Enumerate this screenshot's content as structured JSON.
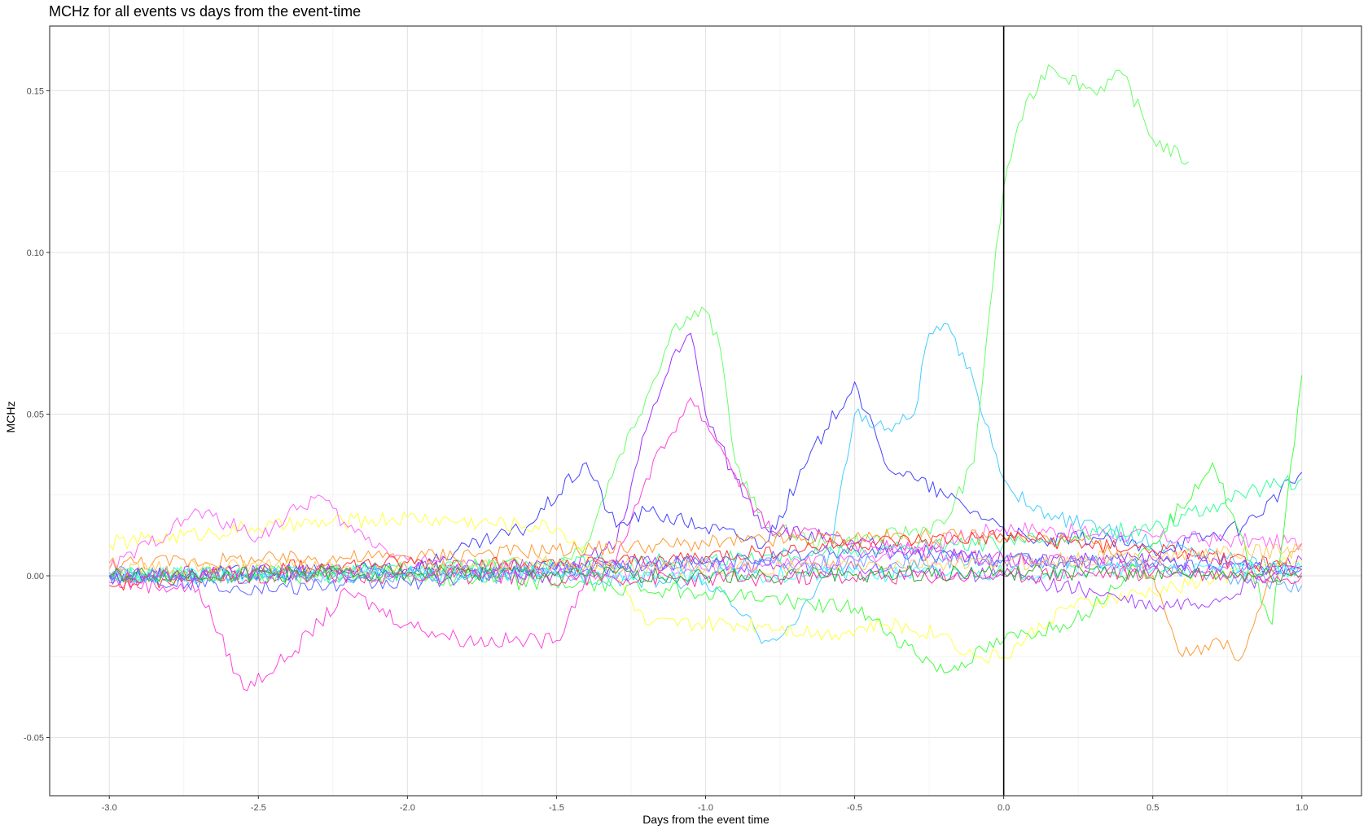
{
  "chart_data": {
    "type": "line",
    "title": "MCHz for all events vs days from the event-time",
    "xlabel": "Days from the event time",
    "ylabel": "MCHz",
    "xlim": [
      -3.2,
      1.2
    ],
    "ylim": [
      -0.068,
      0.17
    ],
    "x_ticks": [
      -3.0,
      -2.5,
      -2.0,
      -1.5,
      -1.0,
      -0.5,
      0.0,
      0.5,
      1.0
    ],
    "x_tick_labels": [
      "-3.0",
      "-2.5",
      "-2.0",
      "-1.5",
      "-1.0",
      "-0.5",
      "0.0",
      "0.5",
      "1.0"
    ],
    "y_ticks": [
      -0.05,
      0.0,
      0.05,
      0.1,
      0.15
    ],
    "y_tick_labels": [
      "-0.05",
      "0.00",
      "0.05",
      "0.10",
      "0.15"
    ],
    "grid": true,
    "legend": "none",
    "vline_x": 0.0,
    "series": [
      {
        "color": "#66ff66",
        "x": [
          -3.0,
          -2.0,
          -1.5,
          -1.4,
          -1.3,
          -1.2,
          -1.1,
          -1.0,
          -0.95,
          -0.9,
          -0.8,
          -0.6,
          -0.4,
          -0.2,
          -0.1,
          -0.05,
          0.0,
          0.05,
          0.15,
          0.3,
          0.4,
          0.5,
          0.62
        ],
        "y": [
          0.0,
          0.002,
          0.004,
          0.01,
          0.035,
          0.055,
          0.078,
          0.082,
          0.07,
          0.035,
          0.015,
          0.01,
          0.012,
          0.016,
          0.035,
          0.08,
          0.12,
          0.14,
          0.158,
          0.15,
          0.155,
          0.135,
          0.128
        ]
      },
      {
        "color": "#9933ff",
        "x": [
          -3.0,
          -2.0,
          -1.5,
          -1.3,
          -1.2,
          -1.1,
          -1.05,
          -1.0,
          -0.9,
          -0.8,
          -0.5,
          0.0,
          0.5,
          1.0
        ],
        "y": [
          0.0,
          0.002,
          0.0,
          0.01,
          0.045,
          0.07,
          0.075,
          0.05,
          0.03,
          0.015,
          0.01,
          0.005,
          0.005,
          0.003
        ]
      },
      {
        "color": "#ff44dd",
        "x": [
          -3.0,
          -2.7,
          -2.55,
          -2.4,
          -2.2,
          -2.0,
          -1.8,
          -1.6,
          -1.5,
          -1.4,
          -1.3,
          -1.2,
          -1.05,
          -0.95,
          -0.8,
          -0.5,
          0.0,
          0.5,
          1.0
        ],
        "y": [
          -0.002,
          -0.004,
          -0.035,
          -0.025,
          -0.005,
          -0.015,
          -0.02,
          -0.02,
          -0.02,
          0.0,
          0.005,
          0.03,
          0.055,
          0.04,
          0.015,
          0.01,
          0.005,
          0.003,
          0.001
        ]
      },
      {
        "color": "#4444ff",
        "x": [
          -3.0,
          -2.0,
          -1.6,
          -1.4,
          -1.3,
          -1.2,
          -1.0,
          -0.8,
          -0.6,
          -0.5,
          -0.4,
          -0.3,
          -0.2,
          -0.1,
          0.0,
          0.1,
          0.3,
          0.5,
          0.8,
          1.0
        ],
        "y": [
          0.0,
          0.002,
          0.015,
          0.035,
          0.015,
          0.02,
          0.015,
          0.01,
          0.045,
          0.06,
          0.035,
          0.03,
          0.025,
          0.02,
          0.015,
          0.01,
          0.012,
          0.008,
          0.015,
          0.032
        ]
      },
      {
        "color": "#44ccff",
        "x": [
          -3.0,
          -2.0,
          -1.5,
          -1.0,
          -0.9,
          -0.8,
          -0.7,
          -0.6,
          -0.5,
          -0.4,
          -0.3,
          -0.25,
          -0.2,
          -0.1,
          0.0,
          0.1,
          0.5,
          1.0
        ],
        "y": [
          0.0,
          0.0,
          0.0,
          -0.002,
          -0.01,
          -0.02,
          -0.015,
          0.0,
          0.05,
          0.045,
          0.05,
          0.075,
          0.078,
          0.06,
          0.03,
          0.02,
          0.01,
          0.002
        ]
      },
      {
        "color": "#ffff44",
        "x": [
          -3.0,
          -2.5,
          -2.0,
          -1.5,
          -1.3,
          -1.2,
          -1.0,
          -0.8,
          -0.6,
          -0.4,
          -0.2,
          -0.1,
          0.0,
          0.2,
          0.5,
          1.0
        ],
        "y": [
          0.01,
          0.015,
          0.018,
          0.015,
          0.0,
          -0.015,
          -0.015,
          -0.015,
          -0.018,
          -0.015,
          -0.018,
          -0.025,
          -0.025,
          -0.01,
          -0.005,
          0.005
        ]
      },
      {
        "color": "#ff66ff",
        "x": [
          -3.0,
          -2.7,
          -2.5,
          -2.3,
          -2.2,
          -2.0,
          -1.8,
          -1.5,
          -1.0,
          -0.5,
          0.0,
          0.5,
          1.0
        ],
        "y": [
          0.002,
          0.02,
          0.012,
          0.025,
          0.015,
          0.005,
          0.003,
          0.0,
          0.002,
          0.005,
          0.015,
          0.012,
          0.01
        ]
      },
      {
        "color": "#ff9933",
        "x": [
          -3.0,
          -2.5,
          -2.0,
          -1.5,
          -1.0,
          -0.5,
          0.0,
          0.3,
          0.5,
          0.6,
          0.7,
          0.8,
          0.9,
          1.0
        ],
        "y": [
          0.004,
          0.005,
          0.006,
          0.008,
          0.01,
          0.012,
          0.012,
          0.01,
          0.0,
          -0.025,
          -0.02,
          -0.025,
          0.0,
          0.01
        ]
      },
      {
        "color": "#33ff99",
        "x": [
          -3.0,
          -2.0,
          -1.0,
          -0.5,
          0.0,
          0.5,
          0.8,
          1.0
        ],
        "y": [
          0.0,
          0.002,
          0.005,
          0.008,
          0.01,
          0.015,
          0.025,
          0.03
        ]
      },
      {
        "color": "#44ff44",
        "x": [
          -3.0,
          -2.0,
          -1.0,
          -0.5,
          -0.2,
          0.0,
          0.2,
          0.3,
          0.5,
          0.7,
          0.9,
          1.0
        ],
        "y": [
          0.0,
          0.0,
          -0.005,
          -0.01,
          -0.03,
          -0.02,
          -0.015,
          -0.01,
          0.01,
          0.035,
          -0.015,
          0.062
        ]
      },
      {
        "color": "#ff3333",
        "x": [
          -3.0,
          -2.5,
          -2.0,
          -1.5,
          -1.0,
          -0.5,
          0.0,
          0.5,
          1.0
        ],
        "y": [
          -0.003,
          0.002,
          0.004,
          0.003,
          0.006,
          0.01,
          0.012,
          0.008,
          0.002
        ]
      },
      {
        "color": "#aa44ff",
        "x": [
          -3.0,
          -2.0,
          -1.0,
          -0.5,
          0.0,
          0.3,
          0.5,
          0.7,
          0.9,
          1.0
        ],
        "y": [
          0.0,
          0.002,
          0.004,
          0.002,
          0.0,
          -0.005,
          -0.01,
          -0.008,
          0.0,
          0.005
        ]
      },
      {
        "color": "#66aaff",
        "x": [
          -3.0,
          -2.0,
          -1.0,
          0.0,
          0.5,
          1.0
        ],
        "y": [
          0.001,
          0.0,
          0.003,
          0.005,
          0.003,
          -0.003
        ]
      },
      {
        "color": "#6666ff",
        "x": [
          -3.0,
          -2.5,
          -2.0,
          -1.5,
          -1.0,
          -0.5,
          0.0,
          0.5,
          1.0
        ],
        "y": [
          0.0,
          -0.004,
          -0.002,
          0.002,
          0.004,
          0.008,
          0.005,
          0.004,
          0.002
        ]
      },
      {
        "color": "#ffcc66",
        "x": [
          -3.0,
          -2.5,
          -2.0,
          -1.5,
          -1.0,
          -0.5,
          0.0,
          0.5,
          1.0
        ],
        "y": [
          0.002,
          0.003,
          0.002,
          0.004,
          0.002,
          0.003,
          0.004,
          0.006,
          0.008
        ]
      },
      {
        "color": "#33ffff",
        "x": [
          -3.0,
          -2.0,
          -1.0,
          0.0,
          0.5,
          1.0
        ],
        "y": [
          0.0,
          0.001,
          0.0,
          0.001,
          0.002,
          0.002
        ]
      },
      {
        "color": "#ff33aa",
        "x": [
          -3.0,
          -2.0,
          -1.0,
          0.0,
          0.5,
          1.0
        ],
        "y": [
          0.0,
          0.0,
          -0.001,
          0.0,
          0.001,
          0.0
        ]
      },
      {
        "color": "#33aa33",
        "x": [
          -3.0,
          -2.0,
          -1.0,
          0.0,
          1.0
        ],
        "y": [
          0.0,
          0.001,
          0.0,
          0.001,
          0.0
        ]
      }
    ]
  }
}
